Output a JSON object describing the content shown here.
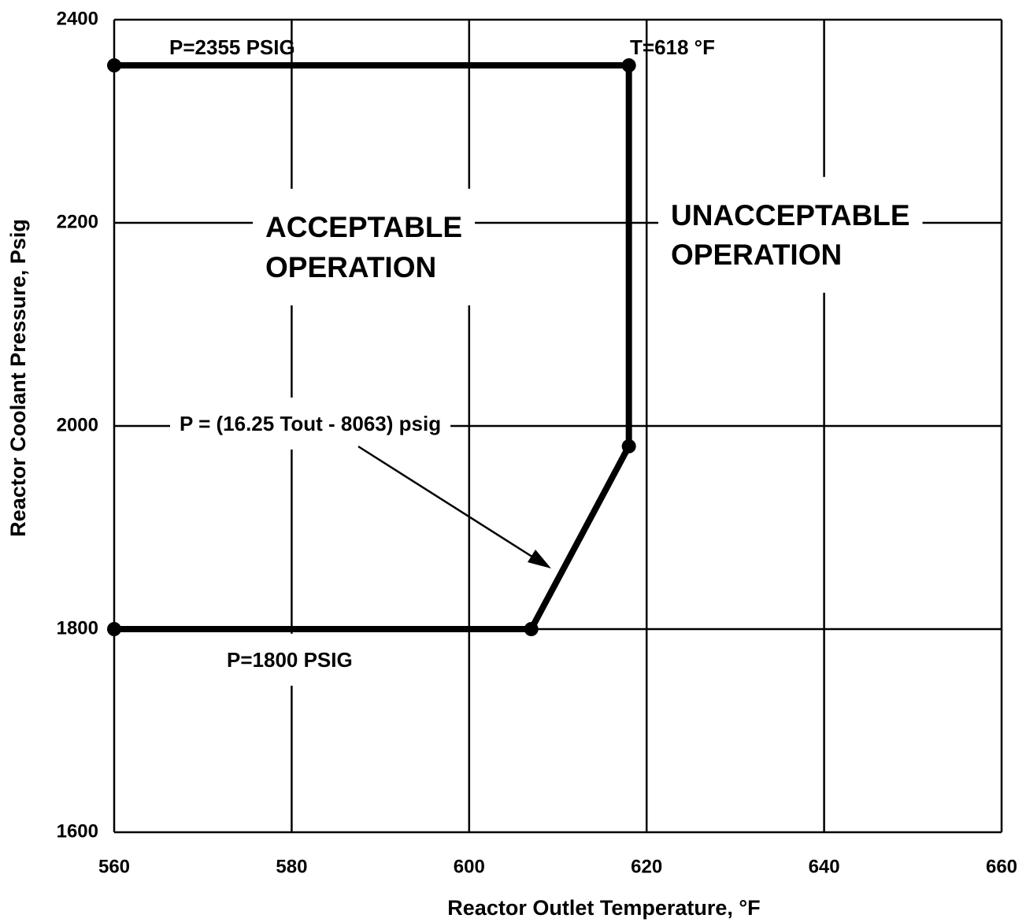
{
  "chart_data": {
    "type": "line",
    "x_label": "Reactor Outlet Temperature, °F",
    "y_label": "Reactor Coolant Pressure, Psig",
    "xlim": [
      560,
      660
    ],
    "xticks": [
      560,
      580,
      600,
      620,
      640,
      660
    ],
    "ylim": [
      1600,
      2400
    ],
    "yticks": [
      1600,
      1800,
      2000,
      2200,
      2400
    ],
    "grid": true,
    "series": [
      {
        "color": "#000000",
        "x": [
          560,
          618,
          618,
          607,
          560
        ],
        "values": [
          2355,
          2355,
          1980,
          1800,
          1800
        ]
      }
    ],
    "annotations": [
      [
        "P=2355 PSIG"
      ],
      [
        "T=618 °F"
      ],
      [
        "ACCEPTABLE",
        "OPERATION"
      ],
      [
        "UNACCEPTABLE",
        "OPERATION"
      ],
      [
        "P = (16.25 Tout - 8063) psig"
      ],
      [
        "P=1800 PSIG"
      ]
    ]
  }
}
